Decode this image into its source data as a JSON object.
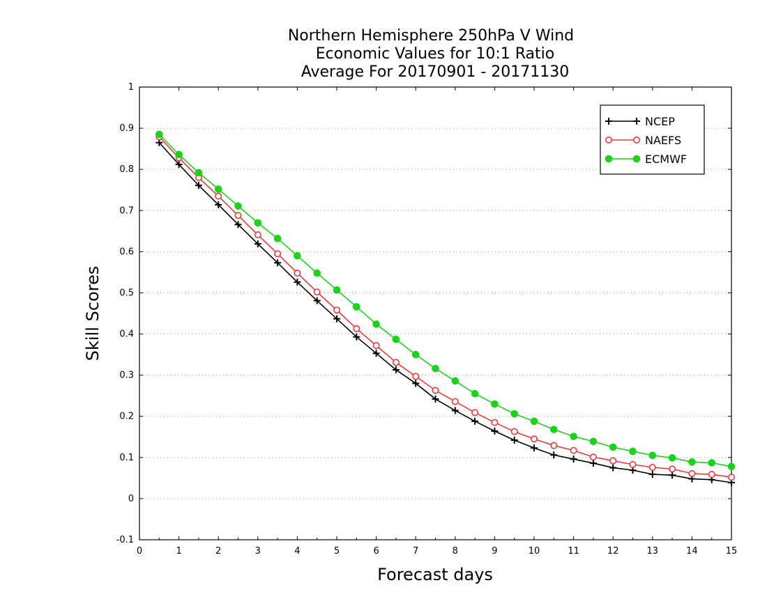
{
  "chart_data": {
    "type": "line",
    "title": [
      "Northern Hemisphere 250hPa V Wind",
      "Economic Values for 10:1 Ratio",
      "Average For 20170901 - 20171130"
    ],
    "xlabel": "Forecast days",
    "ylabel": "Skill Scores",
    "xlim": [
      0,
      15
    ],
    "ylim": [
      -0.1,
      1
    ],
    "x_ticks": [
      0,
      1,
      2,
      3,
      4,
      5,
      6,
      7,
      8,
      9,
      10,
      11,
      12,
      13,
      14,
      15
    ],
    "x_tick_labels": [
      "0",
      "1",
      "2",
      "3",
      "4",
      "5",
      "6",
      "7",
      "8",
      "9",
      "10",
      "11",
      "12",
      "13",
      "14",
      "15"
    ],
    "y_ticks": [
      -0.1,
      0,
      0.1,
      0.2,
      0.3,
      0.4,
      0.5,
      0.6,
      0.7,
      0.8,
      0.9,
      1
    ],
    "y_tick_labels": [
      "-0.1",
      "0",
      "0.1",
      "0.2",
      "0.3",
      "0.4",
      "0.5",
      "0.6",
      "0.7",
      "0.8",
      "0.9",
      "1"
    ],
    "grid": true,
    "legend_position": "top-right",
    "x": [
      0.5,
      1,
      1.5,
      2,
      2.5,
      3,
      3.5,
      4,
      4.5,
      5,
      5.5,
      6,
      6.5,
      7,
      7.5,
      8,
      8.5,
      9,
      9.5,
      10,
      10.5,
      11,
      11.5,
      12,
      12.5,
      13,
      13.5,
      14,
      14.5,
      15
    ],
    "series": [
      {
        "name": "NCEP",
        "color": "#000000",
        "marker": "plus",
        "values": [
          0.865,
          0.812,
          0.761,
          0.714,
          0.666,
          0.619,
          0.573,
          0.526,
          0.481,
          0.437,
          0.393,
          0.353,
          0.313,
          0.28,
          0.242,
          0.214,
          0.188,
          0.164,
          0.142,
          0.123,
          0.106,
          0.096,
          0.086,
          0.075,
          0.069,
          0.059,
          0.057,
          0.048,
          0.046,
          0.039
        ]
      },
      {
        "name": "NAEFS",
        "color": "#e83a3a",
        "marker": "open-circle",
        "values": [
          0.879,
          0.828,
          0.78,
          0.735,
          0.688,
          0.641,
          0.595,
          0.548,
          0.502,
          0.458,
          0.413,
          0.372,
          0.331,
          0.297,
          0.263,
          0.236,
          0.209,
          0.185,
          0.163,
          0.145,
          0.129,
          0.117,
          0.101,
          0.092,
          0.083,
          0.076,
          0.072,
          0.061,
          0.059,
          0.052
        ]
      },
      {
        "name": "ECMWF",
        "color": "#1cd21c",
        "marker": "filled-circle",
        "values": [
          0.885,
          0.836,
          0.792,
          0.752,
          0.711,
          0.67,
          0.632,
          0.59,
          0.548,
          0.507,
          0.466,
          0.424,
          0.387,
          0.35,
          0.316,
          0.286,
          0.255,
          0.23,
          0.206,
          0.188,
          0.168,
          0.151,
          0.139,
          0.125,
          0.115,
          0.105,
          0.099,
          0.089,
          0.087,
          0.078
        ]
      }
    ]
  }
}
